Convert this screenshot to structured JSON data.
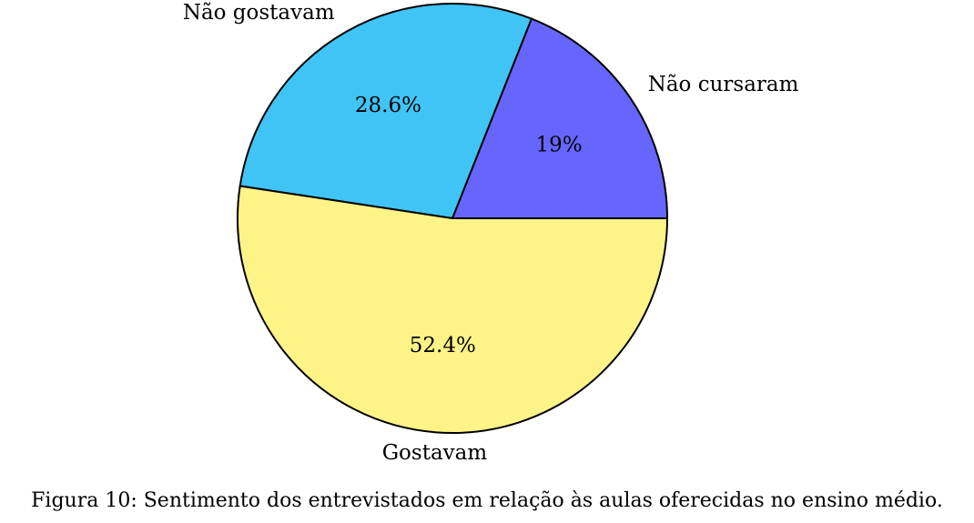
{
  "chart_data": {
    "type": "pie",
    "slices": [
      {
        "label": "Não cursaram",
        "value": 19,
        "value_label": "19%",
        "color": "#6666ff"
      },
      {
        "label": "Não gostavam",
        "value": 28.6,
        "value_label": "28.6%",
        "color": "#40c4f5"
      },
      {
        "label": "Gostavam",
        "value": 52.4,
        "value_label": "52.4%",
        "color": "#fdf387"
      }
    ],
    "start_angle_deg": 0,
    "direction": "counterclockwise",
    "edge_color": "#000000"
  },
  "caption": "Figura 10: Sentimento dos entrevistados em relação às aulas oferecidas no ensino médio."
}
